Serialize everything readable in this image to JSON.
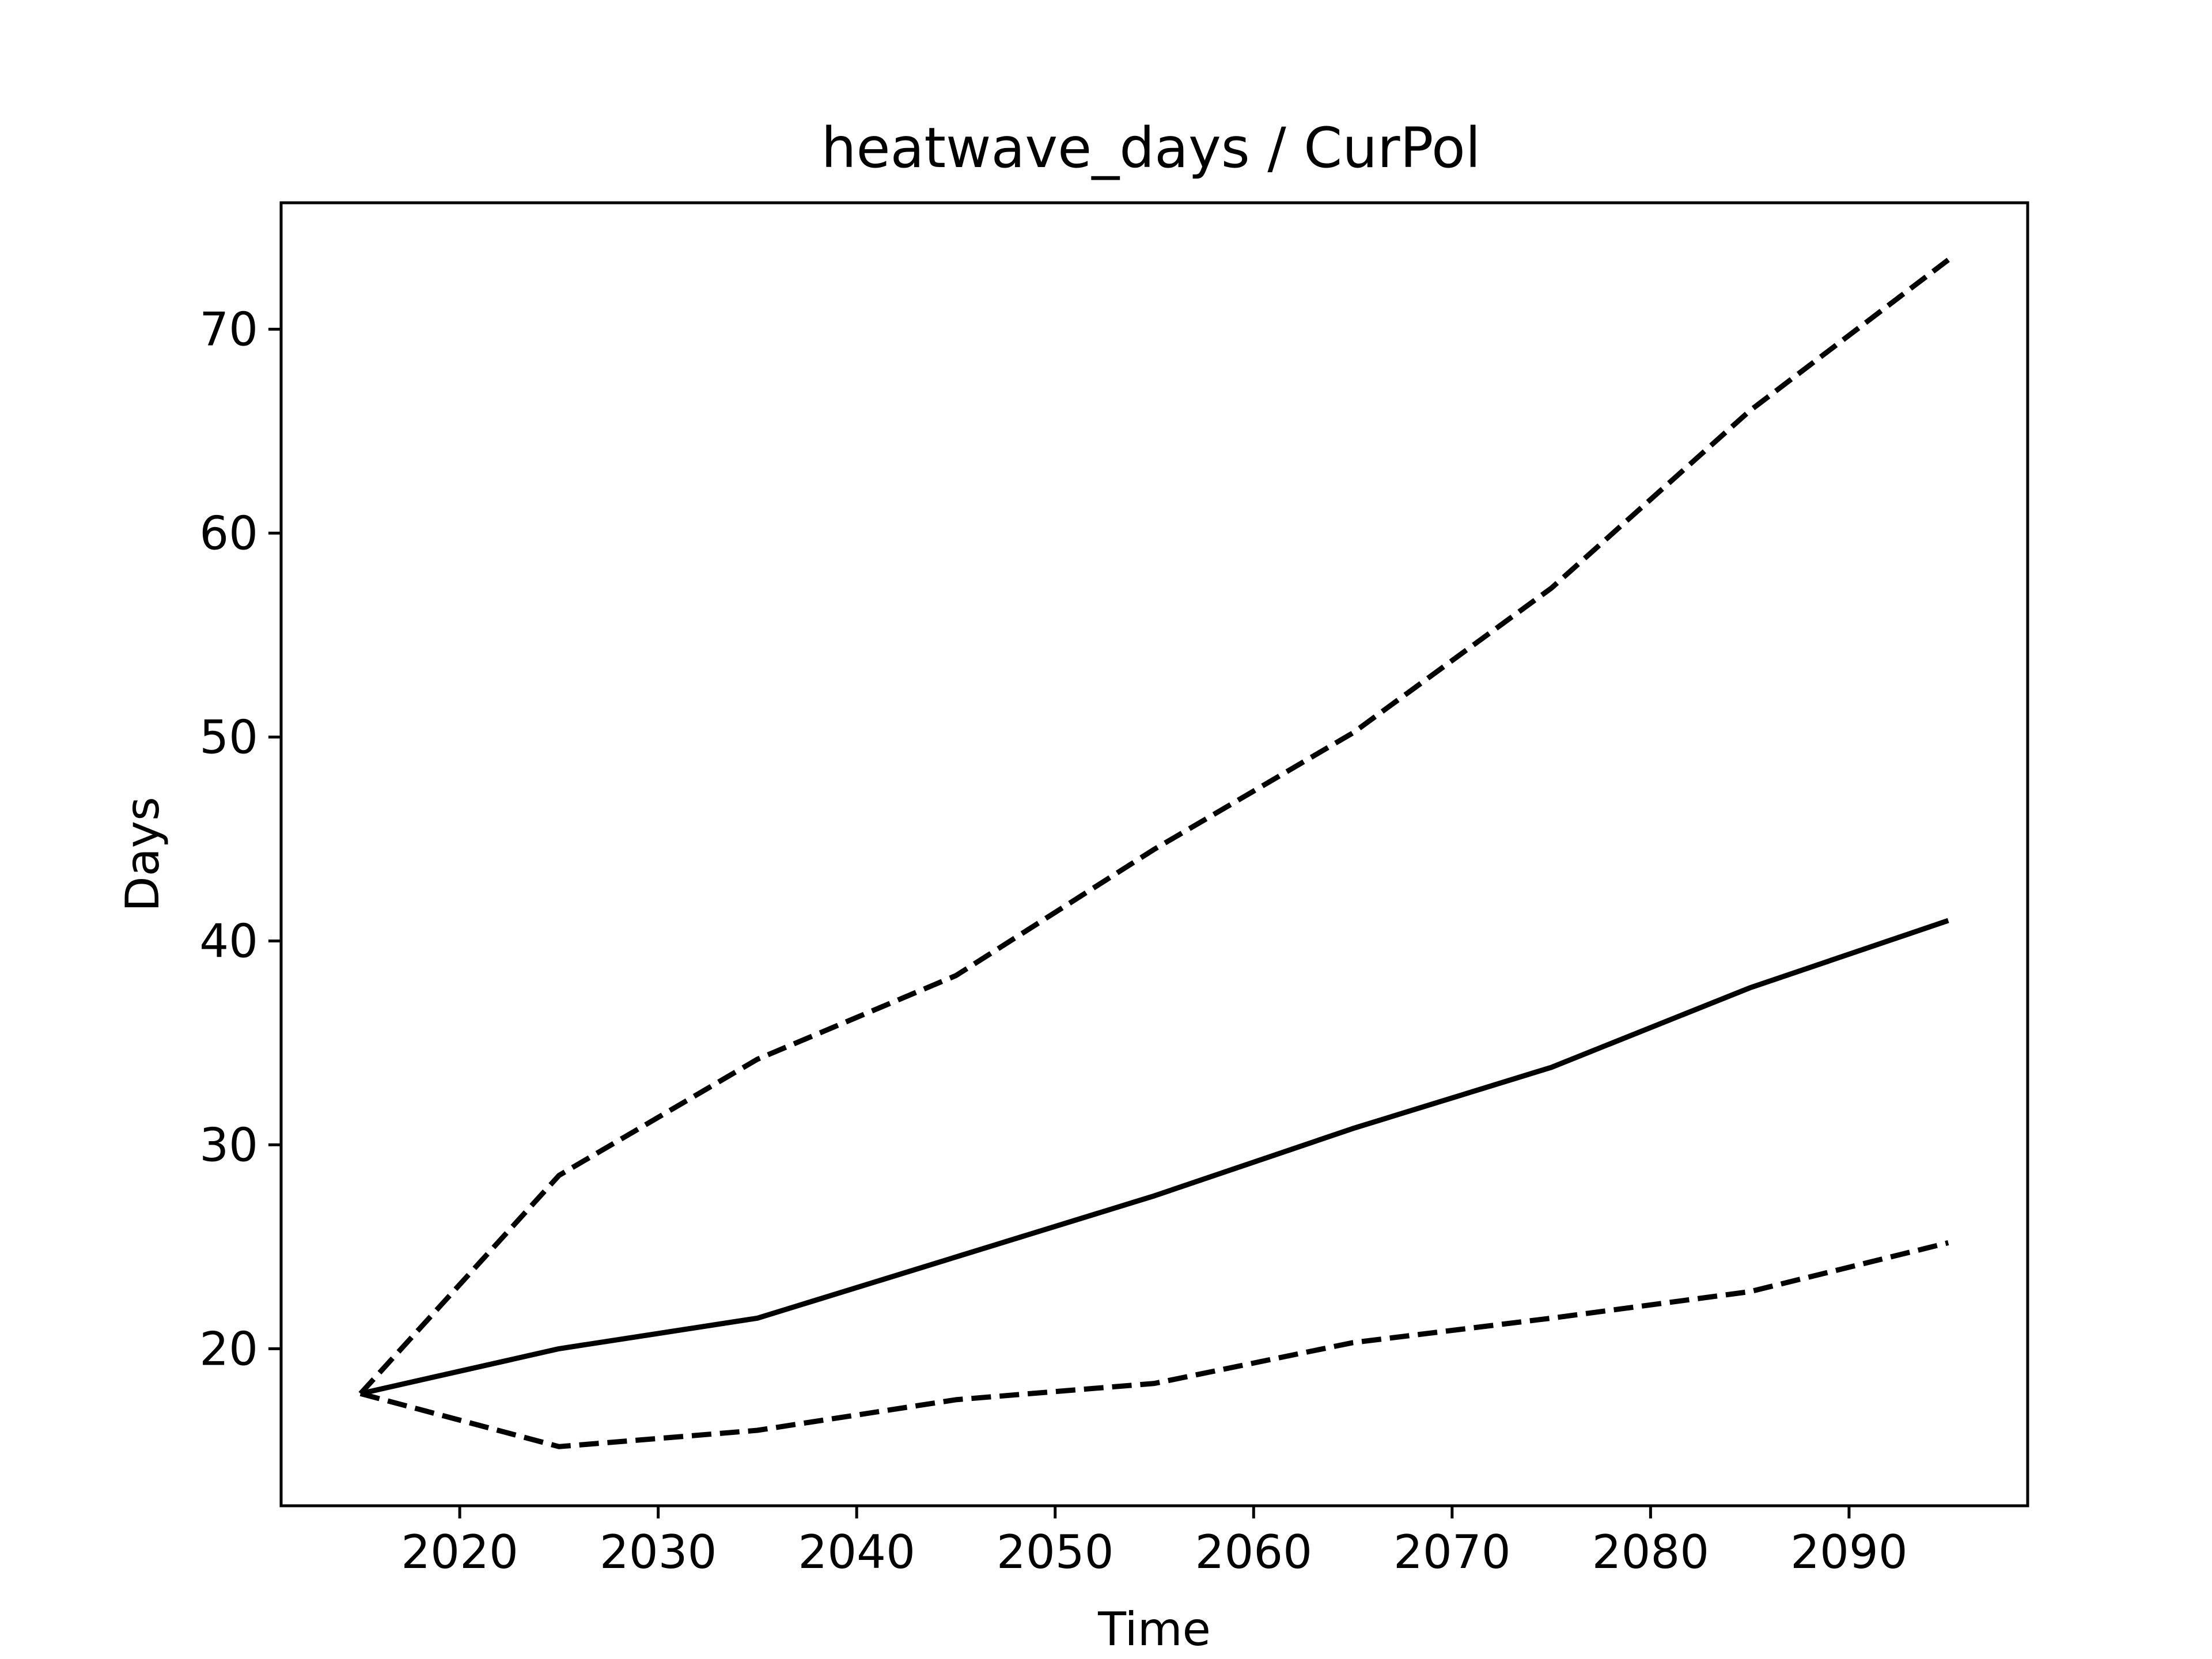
{
  "chart_data": {
    "type": "line",
    "title": "heatwave_days / CurPol",
    "xlabel": "Time",
    "ylabel": "Days",
    "xlim": [
      2011,
      2099
    ],
    "ylim": [
      12.3,
      76.2
    ],
    "x_ticks": [
      2020,
      2030,
      2040,
      2050,
      2060,
      2070,
      2080,
      2090
    ],
    "y_ticks": [
      20,
      30,
      40,
      50,
      60,
      70
    ],
    "grid": false,
    "legend": "none",
    "x": [
      2015,
      2025,
      2035,
      2045,
      2055,
      2065,
      2075,
      2085,
      2095
    ],
    "series": [
      {
        "style": "dashed",
        "color": "#000000",
        "values": [
          17.8,
          28.5,
          34.2,
          38.3,
          44.5,
          50.2,
          57.3,
          66.0,
          73.4
        ]
      },
      {
        "style": "solid",
        "color": "#000000",
        "values": [
          17.8,
          20.0,
          21.5,
          24.5,
          27.5,
          30.8,
          33.8,
          37.7,
          41.0
        ]
      },
      {
        "style": "dashed",
        "color": "#000000",
        "values": [
          17.8,
          15.2,
          16.0,
          17.5,
          18.3,
          20.3,
          21.5,
          22.8,
          25.2
        ]
      }
    ]
  }
}
